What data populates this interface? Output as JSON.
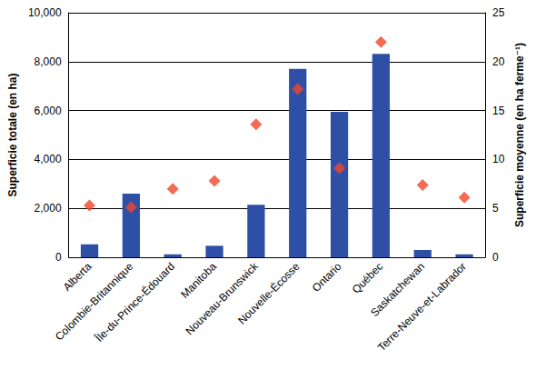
{
  "chart_data": {
    "type": "bar",
    "categories": [
      "Alberta",
      "Colombie-Britannique",
      "Île-du-Prince-Édouard",
      "Manitoba",
      "Nouveau-Brunswick",
      "Nouvelle-Écosse",
      "Ontario",
      "Québec",
      "Saskatchewan",
      "Terre-Neuve-et-Labrador"
    ],
    "ylabel": "Superficie totale (en ha)",
    "y2label": "Superficie moyenne (en ha ferme⁻¹)",
    "ylim": [
      0,
      10000
    ],
    "yticks": [
      0,
      2000,
      4000,
      6000,
      8000,
      10000
    ],
    "y2lim": [
      0,
      25
    ],
    "y2ticks": [
      0,
      5,
      10,
      15,
      20,
      25
    ],
    "grid": true,
    "series": [
      {
        "type": "bar",
        "color": "#2d50a6",
        "values": [
          530,
          2600,
          120,
          470,
          2150,
          7700,
          5950,
          8320,
          300,
          120
        ]
      },
      {
        "type": "scatter",
        "axis": "y2",
        "marker": "diamond",
        "color": "#f2452a",
        "values": [
          5.3,
          5.1,
          7.0,
          7.8,
          13.6,
          17.2,
          9.1,
          22.0,
          7.4,
          6.1
        ]
      }
    ]
  }
}
